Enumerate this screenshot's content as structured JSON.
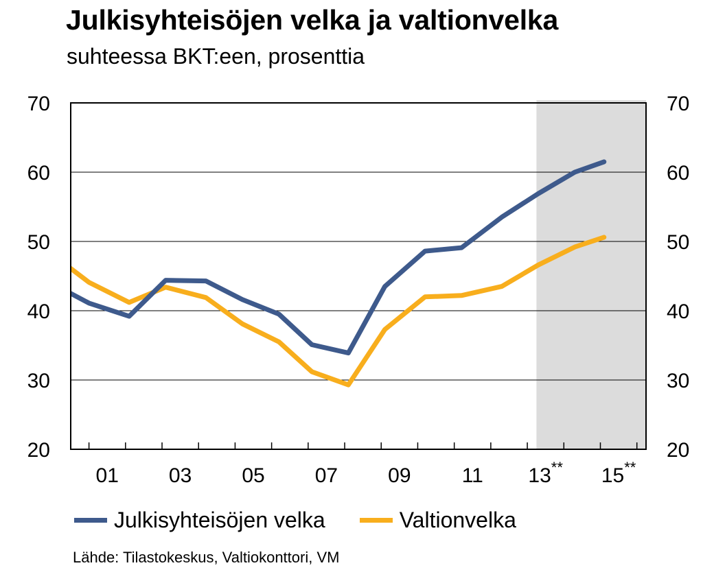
{
  "title": "Julkisyhteisöjen velka ja valtionvelka",
  "subtitle": "suhteessa BKT:een, prosenttia",
  "source": "Lähde: Tilastokeskus, Valtiokonttori, VM",
  "colors": {
    "julkisyhteisot": "#3e5a8c",
    "valtionvelka": "#f8ae1d",
    "forecast_shade": "#dcdcdc",
    "grid": "#000000"
  },
  "chart_data": {
    "type": "line",
    "title": "Julkisyhteisöjen velka ja valtionvelka",
    "subtitle": "suhteessa BKT:een, prosenttia",
    "xlabel": "",
    "ylabel": "",
    "ylim": [
      20,
      70
    ],
    "yticks": [
      20,
      30,
      40,
      50,
      60,
      70
    ],
    "xlim": [
      2000.0,
      2015.75
    ],
    "x_ticks": [
      {
        "x": 2001,
        "label": "01",
        "sup": ""
      },
      {
        "x": 2003,
        "label": "03",
        "sup": ""
      },
      {
        "x": 2005,
        "label": "05",
        "sup": ""
      },
      {
        "x": 2007,
        "label": "07",
        "sup": ""
      },
      {
        "x": 2009,
        "label": "09",
        "sup": ""
      },
      {
        "x": 2011,
        "label": "11",
        "sup": ""
      },
      {
        "x": 2013,
        "label": "13",
        "sup": "**"
      },
      {
        "x": 2015,
        "label": "15",
        "sup": "**"
      }
    ],
    "forecast_start": 2012.75,
    "grid": true,
    "legend_position": "bottom",
    "series": [
      {
        "name": "Julkisyhteisöjen velka",
        "x": [
          2000.0,
          2000.5,
          2001.6,
          2002.6,
          2003.7,
          2004.7,
          2005.7,
          2006.6,
          2007.6,
          2008.6,
          2009.7,
          2010.7,
          2011.8,
          2012.8,
          2013.8,
          2014.6
        ],
        "y": [
          42.5,
          41.1,
          39.2,
          44.4,
          44.3,
          41.6,
          39.5,
          35.1,
          33.9,
          43.5,
          48.6,
          49.1,
          53.5,
          56.9,
          60.0,
          61.5
        ]
      },
      {
        "name": "Valtionvelka",
        "x": [
          2000.0,
          2000.5,
          2001.6,
          2002.6,
          2003.7,
          2004.7,
          2005.7,
          2006.6,
          2007.6,
          2008.6,
          2009.7,
          2010.7,
          2011.8,
          2012.8,
          2013.8,
          2014.6
        ],
        "y": [
          46.1,
          44.1,
          41.2,
          43.4,
          41.9,
          38.1,
          35.5,
          31.2,
          29.3,
          37.3,
          42.0,
          42.2,
          43.5,
          46.6,
          49.2,
          50.6
        ]
      }
    ]
  }
}
